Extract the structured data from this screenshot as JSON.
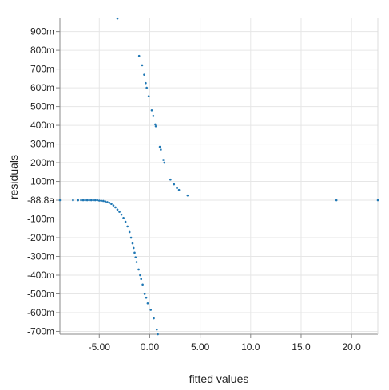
{
  "chart_data": {
    "type": "scatter",
    "title": "",
    "xlabel": "fitted values",
    "ylabel": "residuals",
    "xlim": [
      -8.9,
      22.6
    ],
    "ylim": [
      -0.715,
      0.975
    ],
    "grid": true,
    "legend": "none",
    "marker_color": "#1f77b4",
    "x_ticks": [
      {
        "value": -5,
        "label": "-5.00"
      },
      {
        "value": 0,
        "label": "0.00"
      },
      {
        "value": 5,
        "label": "5.00"
      },
      {
        "value": 10,
        "label": "10.0"
      },
      {
        "value": 15,
        "label": "15.0"
      },
      {
        "value": 20,
        "label": "20.0"
      }
    ],
    "y_ticks": [
      {
        "value": 0.9,
        "label": "900m"
      },
      {
        "value": 0.8,
        "label": "800m"
      },
      {
        "value": 0.7,
        "label": "700m"
      },
      {
        "value": 0.6,
        "label": "600m"
      },
      {
        "value": 0.5,
        "label": "500m"
      },
      {
        "value": 0.4,
        "label": "400m"
      },
      {
        "value": 0.3,
        "label": "300m"
      },
      {
        "value": 0.2,
        "label": "200m"
      },
      {
        "value": 0.1,
        "label": "100m"
      },
      {
        "value": 0.0,
        "label": "-88.8a"
      },
      {
        "value": -0.1,
        "label": "-100m"
      },
      {
        "value": -0.2,
        "label": "-200m"
      },
      {
        "value": -0.3,
        "label": "-300m"
      },
      {
        "value": -0.4,
        "label": "-400m"
      },
      {
        "value": -0.5,
        "label": "-500m"
      },
      {
        "value": -0.6,
        "label": "-600m"
      },
      {
        "value": -0.7,
        "label": "-700m"
      }
    ],
    "points": [
      [
        -3.2,
        0.97
      ],
      [
        -1.05,
        0.77
      ],
      [
        -0.75,
        0.72
      ],
      [
        -0.55,
        0.67
      ],
      [
        -0.4,
        0.625
      ],
      [
        -0.3,
        0.6
      ],
      [
        -0.1,
        0.555
      ],
      [
        0.2,
        0.48
      ],
      [
        0.35,
        0.45
      ],
      [
        0.55,
        0.405
      ],
      [
        0.6,
        0.395
      ],
      [
        1.0,
        0.285
      ],
      [
        1.1,
        0.27
      ],
      [
        1.35,
        0.215
      ],
      [
        1.45,
        0.2
      ],
      [
        2.05,
        0.11
      ],
      [
        2.4,
        0.085
      ],
      [
        2.7,
        0.065
      ],
      [
        2.9,
        0.055
      ],
      [
        3.75,
        0.025
      ],
      [
        18.5,
        0.0
      ],
      [
        22.6,
        0.0
      ],
      [
        -8.9,
        0.0
      ],
      [
        -7.6,
        0.0
      ],
      [
        -7.1,
        0.0
      ],
      [
        -6.8,
        0.0
      ],
      [
        -6.6,
        0.0
      ],
      [
        -6.4,
        0.0
      ],
      [
        -6.2,
        0.0
      ],
      [
        -6.0,
        0.0
      ],
      [
        -5.8,
        0.0
      ],
      [
        -5.6,
        0.0
      ],
      [
        -5.4,
        0.0
      ],
      [
        -5.2,
        0.0
      ],
      [
        -5.0,
        -0.002
      ],
      [
        -4.8,
        -0.003
      ],
      [
        -4.6,
        -0.004
      ],
      [
        -4.4,
        -0.007
      ],
      [
        -4.2,
        -0.01
      ],
      [
        -4.0,
        -0.014
      ],
      [
        -3.8,
        -0.02
      ],
      [
        -3.6,
        -0.028
      ],
      [
        -3.4,
        -0.038
      ],
      [
        -3.2,
        -0.05
      ],
      [
        -3.0,
        -0.062
      ],
      [
        -2.8,
        -0.077
      ],
      [
        -2.6,
        -0.095
      ],
      [
        -2.4,
        -0.115
      ],
      [
        -2.2,
        -0.14
      ],
      [
        -2.0,
        -0.17
      ],
      [
        -1.85,
        -0.2
      ],
      [
        -1.7,
        -0.23
      ],
      [
        -1.6,
        -0.255
      ],
      [
        -1.5,
        -0.28
      ],
      [
        -1.4,
        -0.305
      ],
      [
        -1.3,
        -0.33
      ],
      [
        -1.1,
        -0.37
      ],
      [
        -0.95,
        -0.4
      ],
      [
        -0.85,
        -0.42
      ],
      [
        -0.7,
        -0.45
      ],
      [
        -0.5,
        -0.5
      ],
      [
        -0.35,
        -0.52
      ],
      [
        -0.2,
        -0.55
      ],
      [
        0.1,
        -0.585
      ],
      [
        0.4,
        -0.63
      ],
      [
        0.7,
        -0.69
      ],
      [
        0.8,
        -0.715
      ]
    ]
  }
}
